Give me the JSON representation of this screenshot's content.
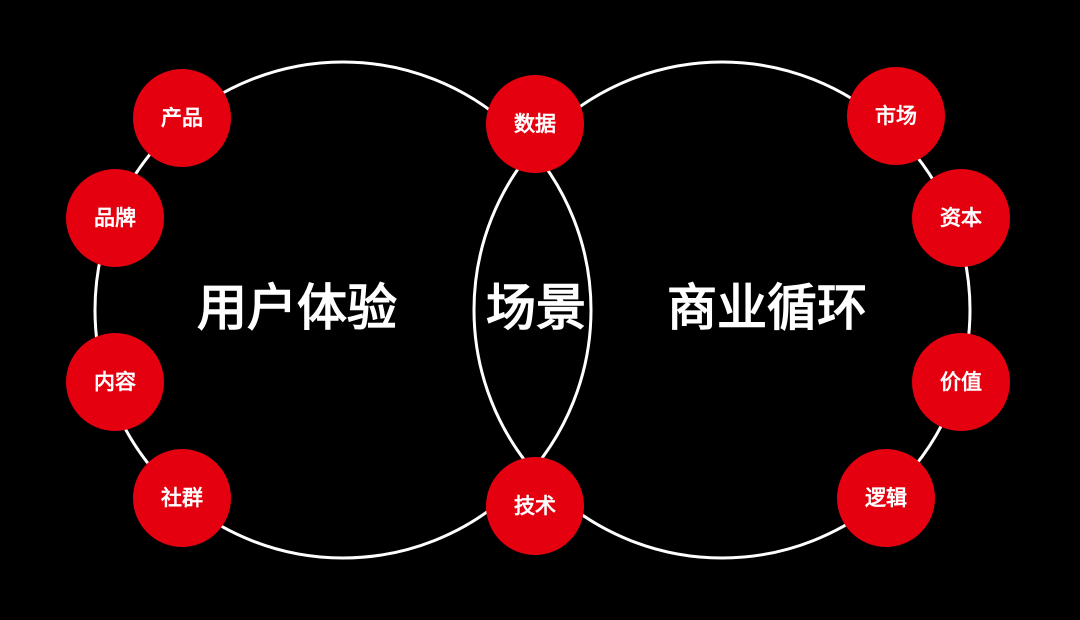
{
  "colors": {
    "background": "#000000",
    "ring": "#ffffff",
    "node": "#e4000f",
    "text": "#ffffff"
  },
  "labels": {
    "left": "用户体验",
    "center": "场景",
    "right": "商业循环"
  },
  "nodes": {
    "product": "产品",
    "brand": "品牌",
    "content": "内容",
    "community": "社群",
    "data": "数据",
    "tech": "技术",
    "market": "市场",
    "capital": "资本",
    "value": "价值",
    "logic": "逻辑"
  }
}
